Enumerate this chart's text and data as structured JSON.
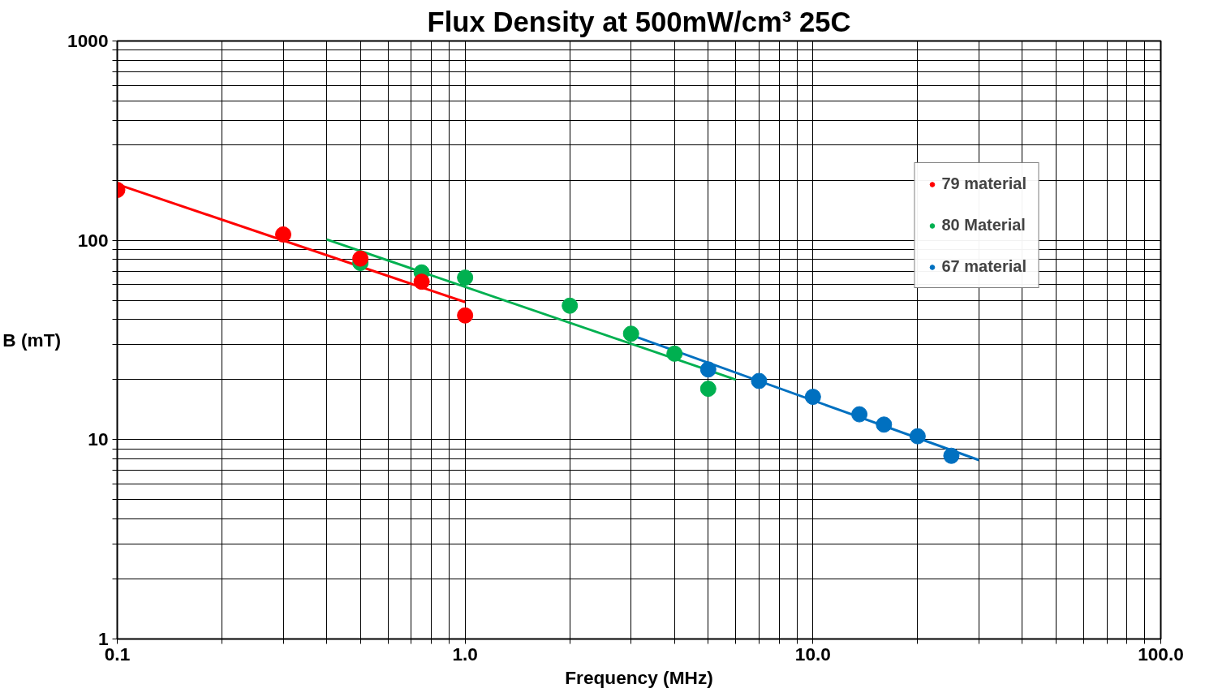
{
  "chart_data": {
    "type": "scatter",
    "title": "Flux Density at 500mW/cm³ 25C",
    "xlabel": "Frequency (MHz)",
    "ylabel": "B (mT)",
    "log": "xy",
    "grid": true,
    "legend": "top right",
    "marker": "circle",
    "line_style": "solid",
    "xlim": [
      0.1,
      100
    ],
    "ylim": [
      1,
      1000
    ],
    "xticks": [
      {
        "value": 0.1,
        "label": "0.1"
      },
      {
        "value": 0.2,
        "label": null
      },
      {
        "value": 0.3,
        "label": null
      },
      {
        "value": 0.4,
        "label": null
      },
      {
        "value": 0.5,
        "label": null
      },
      {
        "value": 0.6,
        "label": null
      },
      {
        "value": 0.7,
        "label": null
      },
      {
        "value": 0.8,
        "label": null
      },
      {
        "value": 0.9,
        "label": null
      },
      {
        "value": 1,
        "label": "1.0"
      },
      {
        "value": 2,
        "label": null
      },
      {
        "value": 3,
        "label": null
      },
      {
        "value": 4,
        "label": null
      },
      {
        "value": 5,
        "label": null
      },
      {
        "value": 6,
        "label": null
      },
      {
        "value": 7,
        "label": null
      },
      {
        "value": 8,
        "label": null
      },
      {
        "value": 9,
        "label": null
      },
      {
        "value": 10,
        "label": "10.0"
      },
      {
        "value": 20,
        "label": null
      },
      {
        "value": 30,
        "label": null
      },
      {
        "value": 40,
        "label": null
      },
      {
        "value": 50,
        "label": null
      },
      {
        "value": 60,
        "label": null
      },
      {
        "value": 70,
        "label": null
      },
      {
        "value": 80,
        "label": null
      },
      {
        "value": 90,
        "label": null
      },
      {
        "value": 100,
        "label": "100.0"
      }
    ],
    "yticks": [
      1,
      {
        "value": 2,
        "label": null
      },
      {
        "value": 3,
        "label": null
      },
      {
        "value": 4,
        "label": null
      },
      {
        "value": 5,
        "label": null
      },
      {
        "value": 6,
        "label": null
      },
      {
        "value": 7,
        "label": null
      },
      {
        "value": 8,
        "label": null
      },
      {
        "value": 9,
        "label": null
      },
      10,
      {
        "value": 20,
        "label": null
      },
      {
        "value": 30,
        "label": null
      },
      {
        "value": 40,
        "label": null
      },
      {
        "value": 50,
        "label": null
      },
      {
        "value": 60,
        "label": null
      },
      {
        "value": 70,
        "label": null
      },
      {
        "value": 80,
        "label": null
      },
      {
        "value": 90,
        "label": null
      },
      100,
      {
        "value": 200,
        "label": null
      },
      {
        "value": 300,
        "label": null
      },
      {
        "value": 400,
        "label": null
      },
      {
        "value": 500,
        "label": null
      },
      {
        "value": 600,
        "label": null
      },
      {
        "value": 700,
        "label": null
      },
      {
        "value": 800,
        "label": null
      },
      {
        "value": 900,
        "label": null
      },
      1000
    ],
    "series": [
      {
        "type": "line",
        "marker": "none",
        "color": "#ff0000",
        "x": [
          0.1,
          1.0
        ],
        "values": [
          191,
          49
        ]
      },
      {
        "type": "line",
        "marker": "none",
        "color": "#00b050",
        "x": [
          0.4,
          6.0
        ],
        "values": [
          101,
          20
        ]
      },
      {
        "type": "line",
        "marker": "none",
        "color": "#0070c0",
        "x": [
          3.0,
          30
        ],
        "values": [
          33.5,
          7.9
        ]
      },
      {
        "name": "79 material",
        "color": "#ff0000",
        "x": [
          0.1,
          0.3,
          0.5,
          0.75,
          1.0
        ],
        "values": [
          179,
          107,
          81,
          62,
          42
        ]
      },
      {
        "name": "80 Material",
        "color": "#00b050",
        "x": [
          0.5,
          0.75,
          1.0,
          2.0,
          3.0,
          4.0,
          5.0
        ],
        "values": [
          77,
          69,
          65,
          47,
          34,
          27,
          18
        ]
      },
      {
        "name": "67 material",
        "color": "#0070c0",
        "x": [
          5.0,
          7.0,
          10,
          13.6,
          16,
          20,
          25
        ],
        "values": [
          22.5,
          19.7,
          16.4,
          13.4,
          11.9,
          10.4,
          8.3
        ]
      }
    ]
  }
}
